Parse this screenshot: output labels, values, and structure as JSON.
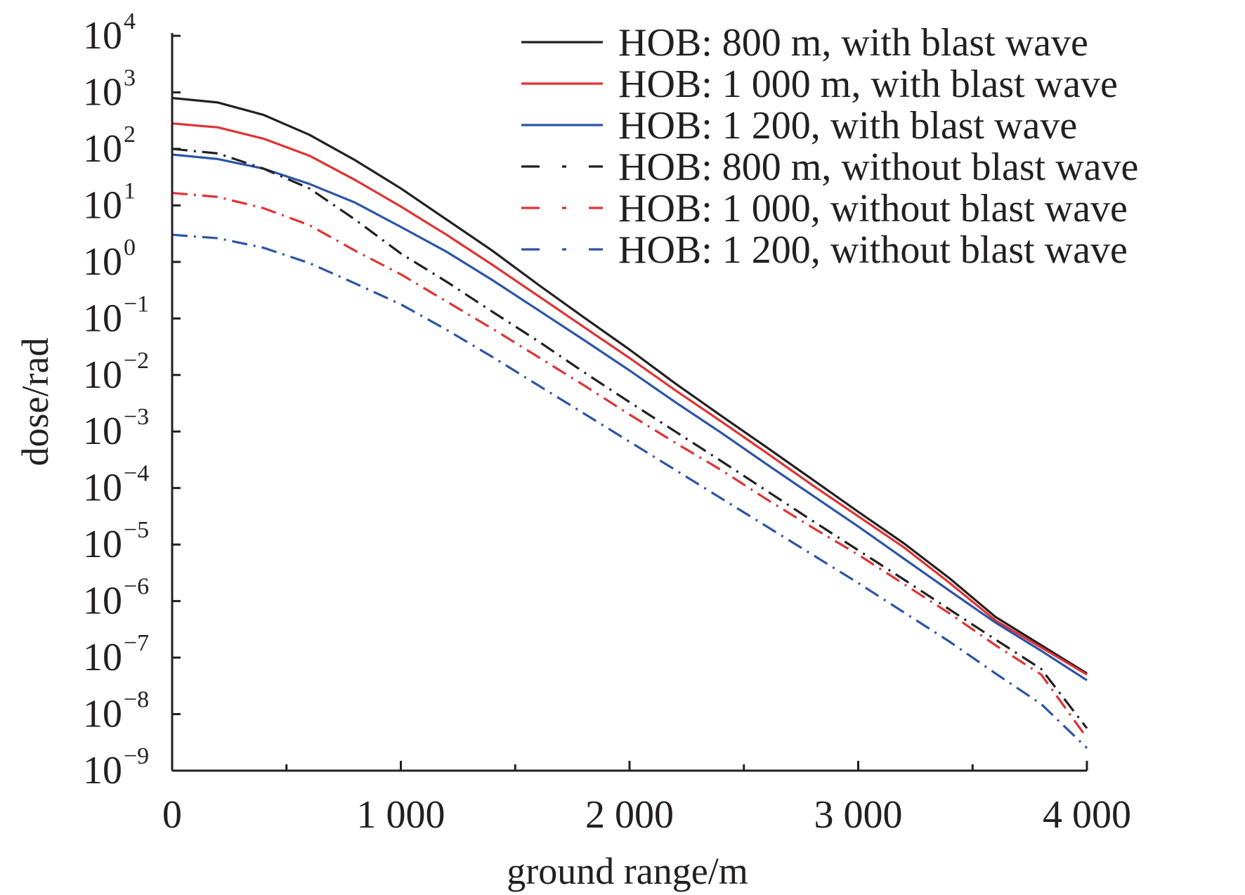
{
  "chart_data": {
    "type": "line",
    "title": "",
    "xlabel": "ground range/m",
    "ylabel": "dose/rad",
    "xlim": [
      0,
      4000
    ],
    "y_scale": "log",
    "ylim_exponent": [
      -9,
      4
    ],
    "legend_position": "top-right",
    "x_ticks": [
      {
        "value": 0,
        "label": "0"
      },
      {
        "value": 1000,
        "label": "1 000"
      },
      {
        "value": 2000,
        "label": "2 000"
      },
      {
        "value": 3000,
        "label": "3 000"
      },
      {
        "value": 4000,
        "label": "4 000"
      }
    ],
    "y_ticks": [
      {
        "exponent": 4,
        "base": "10",
        "sup": "4"
      },
      {
        "exponent": 3,
        "base": "10",
        "sup": "3"
      },
      {
        "exponent": 2,
        "base": "10",
        "sup": "2"
      },
      {
        "exponent": 1,
        "base": "10",
        "sup": "1"
      },
      {
        "exponent": 0,
        "base": "10",
        "sup": "0"
      },
      {
        "exponent": -1,
        "base": "10",
        "sup": "−1"
      },
      {
        "exponent": -2,
        "base": "10",
        "sup": "−2"
      },
      {
        "exponent": -3,
        "base": "10",
        "sup": "−3"
      },
      {
        "exponent": -4,
        "base": "10",
        "sup": "−4"
      },
      {
        "exponent": -5,
        "base": "10",
        "sup": "−5"
      },
      {
        "exponent": -6,
        "base": "10",
        "sup": "−6"
      },
      {
        "exponent": -7,
        "base": "10",
        "sup": "−7"
      },
      {
        "exponent": -8,
        "base": "10",
        "sup": "−8"
      },
      {
        "exponent": -9,
        "base": "10",
        "sup": "−9"
      }
    ],
    "x": [
      0,
      200,
      400,
      600,
      800,
      1000,
      1200,
      1400,
      1600,
      1800,
      2000,
      2200,
      2400,
      2600,
      2800,
      3000,
      3200,
      3400,
      3600,
      3800,
      4000
    ],
    "series": [
      {
        "name": "HOB: 800 m, with blast wave",
        "color": "#231f20",
        "style": "solid",
        "log10_values": [
          2.9,
          2.82,
          2.6,
          2.25,
          1.8,
          1.3,
          0.75,
          0.2,
          -0.4,
          -0.98,
          -1.55,
          -2.15,
          -2.72,
          -3.28,
          -3.85,
          -4.42,
          -4.98,
          -5.6,
          -6.28,
          -6.78,
          -7.28
        ]
      },
      {
        "name": "HOB: 1 000 m, with blast wave",
        "color": "#e03232",
        "style": "solid",
        "log10_values": [
          2.45,
          2.38,
          2.18,
          1.88,
          1.45,
          0.98,
          0.48,
          -0.05,
          -0.6,
          -1.15,
          -1.7,
          -2.27,
          -2.82,
          -3.38,
          -3.95,
          -4.5,
          -5.05,
          -5.68,
          -6.34,
          -6.82,
          -7.3
        ]
      },
      {
        "name": "HOB: 1 200, with blast wave",
        "color": "#2a55a8",
        "style": "solid",
        "log10_values": [
          1.9,
          1.82,
          1.65,
          1.38,
          1.05,
          0.62,
          0.18,
          -0.32,
          -0.85,
          -1.38,
          -1.92,
          -2.48,
          -3.02,
          -3.58,
          -4.13,
          -4.68,
          -5.25,
          -5.82,
          -6.38,
          -6.88,
          -7.4
        ]
      },
      {
        "name": "HOB: 800 m, without blast wave",
        "color": "#231f20",
        "style": "dashdot",
        "log10_values": [
          2.0,
          1.92,
          1.65,
          1.3,
          0.75,
          0.15,
          -0.35,
          -0.88,
          -1.4,
          -1.95,
          -2.48,
          -3.0,
          -3.52,
          -4.05,
          -4.58,
          -5.1,
          -5.62,
          -6.15,
          -6.68,
          -7.2,
          -8.25
        ]
      },
      {
        "name": "HOB: 1 000, without blast wave",
        "color": "#e03232",
        "style": "dashdot",
        "log10_values": [
          1.22,
          1.15,
          0.95,
          0.65,
          0.2,
          -0.22,
          -0.7,
          -1.18,
          -1.68,
          -2.18,
          -2.7,
          -3.2,
          -3.68,
          -4.2,
          -4.7,
          -5.18,
          -5.7,
          -6.22,
          -6.78,
          -7.3,
          -8.42
        ]
      },
      {
        "name": "HOB: 1 200, without blast wave",
        "color": "#2a55a8",
        "style": "dashdot",
        "log10_values": [
          0.48,
          0.42,
          0.25,
          -0.02,
          -0.38,
          -0.75,
          -1.2,
          -1.68,
          -2.18,
          -2.68,
          -3.18,
          -3.68,
          -4.18,
          -4.68,
          -5.18,
          -5.68,
          -6.2,
          -6.72,
          -7.28,
          -7.82,
          -8.6
        ]
      }
    ]
  }
}
